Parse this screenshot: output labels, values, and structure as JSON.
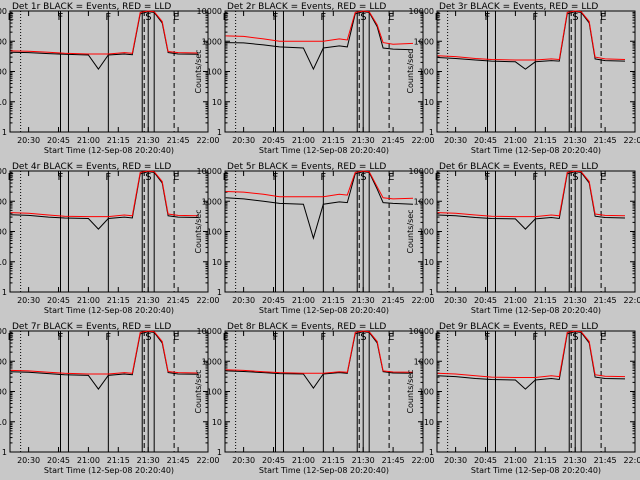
{
  "chart_data": [
    {
      "type": "line",
      "title": "Det 1r BLACK = Events, RED = LLD",
      "xlabel": "Start Time (12-Sep-08 20:20:40)",
      "ylabel": "Counts/sec",
      "yscale": "log",
      "ylim": [
        1,
        10000
      ],
      "xlim": [
        "20:20:40",
        "22:00"
      ],
      "x_tick_labels": [
        "20:30",
        "20:45",
        "21:00",
        "21:15",
        "21:30",
        "21:45",
        "22:00"
      ],
      "y_tick_labels": [
        "1",
        "10",
        "100",
        "1000",
        "10000"
      ],
      "grid": false,
      "flags": [
        "E",
        "F",
        "F",
        "S",
        "E"
      ],
      "x": [
        "20:21",
        "20:30",
        "20:40",
        "20:48",
        "21:00",
        "21:05",
        "21:10",
        "21:18",
        "21:22",
        "21:26",
        "21:30",
        "21:33",
        "21:37",
        "21:40",
        "21:45",
        "21:55"
      ],
      "series": [
        {
          "values": [
            430,
            420,
            390,
            370,
            350,
            120,
            350,
            380,
            360,
            8000,
            9500,
            9000,
            4000,
            420,
            380,
            370
          ],
          "color": "#000000"
        },
        {
          "values": [
            480,
            470,
            430,
            400,
            380,
            380,
            380,
            420,
            400,
            9000,
            10000,
            9500,
            4500,
            460,
            420,
            410
          ],
          "color": "#ff0000"
        }
      ]
    },
    {
      "type": "line",
      "title": "Det 2r BLACK = Events, RED = LLD",
      "xlabel": "Start Time (12-Sep-08 20:20:40)",
      "ylabel": "Counts/sec",
      "yscale": "log",
      "ylim": [
        1,
        10000
      ],
      "xlim": [
        "20:20:40",
        "22:00"
      ],
      "x_tick_labels": [
        "20:30",
        "20:45",
        "21:00",
        "21:15",
        "21:30",
        "21:45",
        "22:00"
      ],
      "y_tick_labels": [
        "1",
        "10",
        "100",
        "1000",
        "10000"
      ],
      "grid": false,
      "flags": [
        "E",
        "F",
        "F",
        "S",
        "E"
      ],
      "x": [
        "20:21",
        "20:30",
        "20:40",
        "20:48",
        "21:00",
        "21:05",
        "21:10",
        "21:18",
        "21:22",
        "21:26",
        "21:30",
        "21:33",
        "21:37",
        "21:40",
        "21:45",
        "21:55"
      ],
      "series": [
        {
          "values": [
            900,
            880,
            760,
            650,
            600,
            120,
            600,
            700,
            650,
            8000,
            9500,
            9000,
            3000,
            600,
            550,
            520
          ],
          "color": "#000000"
        },
        {
          "values": [
            1500,
            1450,
            1200,
            1000,
            1000,
            1000,
            1000,
            1200,
            1100,
            9000,
            10000,
            9500,
            3500,
            900,
            800,
            850
          ],
          "color": "#ff0000"
        }
      ]
    },
    {
      "type": "line",
      "title": "Det 3r BLACK = Events, RED = LLD",
      "xlabel": "Start Time (12-Sep-08 20:20:40)",
      "ylabel": "Counts/sec",
      "yscale": "log",
      "ylim": [
        1,
        10000
      ],
      "xlim": [
        "20:20:40",
        "22:00"
      ],
      "x_tick_labels": [
        "20:30",
        "20:45",
        "21:00",
        "21:15",
        "21:30",
        "21:45",
        "22:00"
      ],
      "y_tick_labels": [
        "1",
        "10",
        "100",
        "1000",
        "10000"
      ],
      "grid": false,
      "flags": [
        "E",
        "F",
        "F",
        "S",
        "E"
      ],
      "x": [
        "20:21",
        "20:30",
        "20:40",
        "20:48",
        "21:00",
        "21:05",
        "21:10",
        "21:18",
        "21:22",
        "21:26",
        "21:30",
        "21:33",
        "21:37",
        "21:40",
        "21:45",
        "21:55"
      ],
      "series": [
        {
          "values": [
            290,
            270,
            240,
            220,
            210,
            120,
            210,
            230,
            220,
            8000,
            9500,
            9000,
            4000,
            260,
            230,
            220
          ],
          "color": "#000000"
        },
        {
          "values": [
            330,
            310,
            270,
            250,
            240,
            240,
            240,
            260,
            250,
            9000,
            10000,
            9500,
            4500,
            300,
            260,
            250
          ],
          "color": "#ff0000"
        }
      ]
    },
    {
      "type": "line",
      "title": "Det 4r BLACK = Events, RED = LLD",
      "xlabel": "Start Time (12-Sep-08 20:20:40)",
      "ylabel": "Counts/sec",
      "yscale": "log",
      "ylim": [
        1,
        10000
      ],
      "xlim": [
        "20:20:40",
        "22:00"
      ],
      "x_tick_labels": [
        "20:30",
        "20:45",
        "21:00",
        "21:15",
        "21:30",
        "21:45",
        "22:00"
      ],
      "y_tick_labels": [
        "1",
        "10",
        "100",
        "1000",
        "10000"
      ],
      "grid": false,
      "flags": [
        "E",
        "F",
        "F",
        "S",
        "E"
      ],
      "x": [
        "20:21",
        "20:30",
        "20:40",
        "20:48",
        "21:00",
        "21:05",
        "21:10",
        "21:18",
        "21:22",
        "21:26",
        "21:30",
        "21:33",
        "21:37",
        "21:40",
        "21:45",
        "21:55"
      ],
      "series": [
        {
          "values": [
            360,
            340,
            300,
            280,
            270,
            120,
            270,
            300,
            280,
            8000,
            9500,
            9000,
            4000,
            330,
            300,
            290
          ],
          "color": "#000000"
        },
        {
          "values": [
            420,
            400,
            350,
            320,
            310,
            310,
            310,
            350,
            330,
            9000,
            10000,
            9500,
            4500,
            380,
            340,
            330
          ],
          "color": "#ff0000"
        }
      ]
    },
    {
      "type": "line",
      "title": "Det 5r BLACK = Events, RED = LLD",
      "xlabel": "Start Time (12-Sep-08 20:20:40)",
      "ylabel": "Counts/sec",
      "yscale": "log",
      "ylim": [
        1,
        10000
      ],
      "xlim": [
        "20:20:40",
        "22:00"
      ],
      "x_tick_labels": [
        "20:30",
        "20:45",
        "21:00",
        "21:15",
        "21:30",
        "21:45",
        "22:00"
      ],
      "y_tick_labels": [
        "1",
        "10",
        "100",
        "1000",
        "10000"
      ],
      "grid": false,
      "flags": [
        "E",
        "F",
        "F",
        "S",
        "E"
      ],
      "x": [
        "20:21",
        "20:30",
        "20:40",
        "20:48",
        "21:00",
        "21:05",
        "21:10",
        "21:18",
        "21:22",
        "21:26",
        "21:30",
        "21:33",
        "21:37",
        "21:40",
        "21:45",
        "21:55"
      ],
      "series": [
        {
          "values": [
            1300,
            1200,
            1000,
            850,
            800,
            60,
            800,
            950,
            900,
            8000,
            9500,
            9000,
            2500,
            900,
            850,
            800
          ],
          "color": "#000000"
        },
        {
          "values": [
            2100,
            2000,
            1700,
            1400,
            1400,
            1400,
            1400,
            1700,
            1600,
            9000,
            10000,
            9500,
            3000,
            1300,
            1200,
            1250
          ],
          "color": "#ff0000"
        }
      ]
    },
    {
      "type": "line",
      "title": "Det 6r BLACK = Events, RED = LLD",
      "xlabel": "Start Time (12-Sep-08 20:20:40)",
      "ylabel": "Counts/sec",
      "yscale": "log",
      "ylim": [
        1,
        10000
      ],
      "xlim": [
        "20:20:40",
        "22:00"
      ],
      "x_tick_labels": [
        "20:30",
        "20:45",
        "21:00",
        "21:15",
        "21:30",
        "21:45",
        "22:00"
      ],
      "y_tick_labels": [
        "1",
        "10",
        "100",
        "1000",
        "10000"
      ],
      "grid": false,
      "flags": [
        "E",
        "F",
        "F",
        "S",
        "E"
      ],
      "x": [
        "20:21",
        "20:30",
        "20:40",
        "20:48",
        "21:00",
        "21:05",
        "21:10",
        "21:18",
        "21:22",
        "21:26",
        "21:30",
        "21:33",
        "21:37",
        "21:40",
        "21:45",
        "21:55"
      ],
      "series": [
        {
          "values": [
            350,
            330,
            290,
            270,
            260,
            120,
            260,
            290,
            270,
            8000,
            9500,
            9000,
            4000,
            320,
            290,
            280
          ],
          "color": "#000000"
        },
        {
          "values": [
            420,
            400,
            350,
            320,
            310,
            310,
            310,
            350,
            330,
            9000,
            10000,
            9500,
            4500,
            380,
            340,
            330
          ],
          "color": "#ff0000"
        }
      ]
    },
    {
      "type": "line",
      "title": "Det 7r BLACK = Events, RED = LLD",
      "xlabel": "Start Time (12-Sep-08 20:20:40)",
      "ylabel": "Counts/sec",
      "yscale": "log",
      "ylim": [
        1,
        10000
      ],
      "xlim": [
        "20:20:40",
        "22:00"
      ],
      "x_tick_labels": [
        "20:30",
        "20:45",
        "21:00",
        "21:15",
        "21:30",
        "21:45",
        "22:00"
      ],
      "y_tick_labels": [
        "1",
        "10",
        "100",
        "1000",
        "10000"
      ],
      "grid": false,
      "flags": [
        "E",
        "F",
        "F",
        "S",
        "E"
      ],
      "x": [
        "20:21",
        "20:30",
        "20:40",
        "20:48",
        "21:00",
        "21:05",
        "21:10",
        "21:18",
        "21:22",
        "21:26",
        "21:30",
        "21:33",
        "21:37",
        "21:40",
        "21:45",
        "21:55"
      ],
      "series": [
        {
          "values": [
            450,
            430,
            390,
            360,
            340,
            120,
            340,
            380,
            360,
            8000,
            9500,
            9000,
            4000,
            420,
            380,
            370
          ],
          "color": "#000000"
        },
        {
          "values": [
            500,
            480,
            430,
            400,
            380,
            380,
            380,
            420,
            400,
            9000,
            10000,
            9500,
            4500,
            460,
            420,
            410
          ],
          "color": "#ff0000"
        }
      ]
    },
    {
      "type": "line",
      "title": "Det 8r BLACK = Events, RED = LLD",
      "xlabel": "Start Time (12-Sep-08 20:20:40)",
      "ylabel": "Counts/sec",
      "yscale": "log",
      "ylim": [
        1,
        10000
      ],
      "xlim": [
        "20:20:40",
        "22:00"
      ],
      "x_tick_labels": [
        "20:30",
        "20:45",
        "21:00",
        "21:15",
        "21:30",
        "21:45",
        "22:00"
      ],
      "y_tick_labels": [
        "1",
        "10",
        "100",
        "1000",
        "10000"
      ],
      "grid": false,
      "flags": [
        "E",
        "F",
        "F",
        "S",
        "E"
      ],
      "x": [
        "20:21",
        "20:30",
        "20:40",
        "20:48",
        "21:00",
        "21:05",
        "21:10",
        "21:18",
        "21:22",
        "21:26",
        "21:30",
        "21:33",
        "21:37",
        "21:40",
        "21:45",
        "21:55"
      ],
      "series": [
        {
          "values": [
            480,
            460,
            420,
            390,
            380,
            130,
            380,
            420,
            400,
            8000,
            9500,
            9000,
            4000,
            450,
            410,
            400
          ],
          "color": "#000000"
        },
        {
          "values": [
            520,
            500,
            450,
            420,
            400,
            400,
            400,
            450,
            430,
            9000,
            10000,
            9500,
            4500,
            480,
            440,
            430
          ],
          "color": "#ff0000"
        }
      ]
    },
    {
      "type": "line",
      "title": "Det 9r BLACK = Events, RED = LLD",
      "xlabel": "Start Time (12-Sep-08 20:20:40)",
      "ylabel": "Counts/sec",
      "yscale": "log",
      "ylim": [
        1,
        10000
      ],
      "xlim": [
        "20:20:40",
        "22:00"
      ],
      "x_tick_labels": [
        "20:30",
        "20:45",
        "21:00",
        "21:15",
        "21:30",
        "21:45",
        "22:00"
      ],
      "y_tick_labels": [
        "1",
        "10",
        "100",
        "1000",
        "10000"
      ],
      "grid": false,
      "flags": [
        "E",
        "F",
        "F",
        "S",
        "E"
      ],
      "x": [
        "20:21",
        "20:30",
        "20:40",
        "20:48",
        "21:00",
        "21:05",
        "21:10",
        "21:18",
        "21:22",
        "21:26",
        "21:30",
        "21:33",
        "21:37",
        "21:40",
        "21:45",
        "21:55"
      ],
      "series": [
        {
          "values": [
            330,
            310,
            270,
            250,
            240,
            120,
            240,
            270,
            250,
            8000,
            9500,
            9000,
            4000,
            300,
            270,
            260
          ],
          "color": "#000000"
        },
        {
          "values": [
            400,
            380,
            330,
            300,
            290,
            290,
            290,
            330,
            310,
            9000,
            10000,
            9500,
            4500,
            360,
            320,
            310
          ],
          "color": "#ff0000"
        }
      ]
    }
  ]
}
